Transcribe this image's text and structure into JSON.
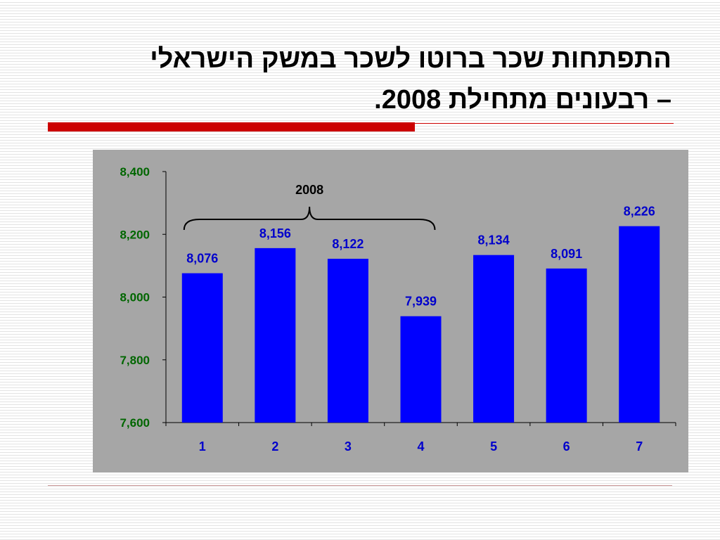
{
  "slide": {
    "title_line1": "התפתחות שכר ברוטו לשכר במשק הישראלי",
    "title_line2": "– רבעונים מתחילת 2008."
  },
  "colors": {
    "bar": "#0000ff",
    "data_label": "#0000cc",
    "axis_label": "#006600",
    "plot_background": "#a6a6a6",
    "accent_rule": "#cc0000"
  },
  "chart_data": {
    "type": "bar",
    "categories": [
      "1",
      "2",
      "3",
      "4",
      "5",
      "6",
      "7"
    ],
    "values": [
      8076,
      8156,
      8122,
      7939,
      8134,
      8091,
      8226
    ],
    "value_labels": [
      "8,076",
      "8,156",
      "8,122",
      "7,939",
      "8,134",
      "8,091",
      "8,226"
    ],
    "ylim": [
      7600,
      8400
    ],
    "yticks": [
      7600,
      7800,
      8000,
      8200,
      8400
    ],
    "ytick_labels": [
      "7,600",
      "7,800",
      "8,000",
      "8,200",
      "8,400"
    ],
    "grid": false,
    "annotations": [
      {
        "text": "2008",
        "type": "brace",
        "span_categories": [
          "1",
          "4"
        ]
      }
    ]
  }
}
